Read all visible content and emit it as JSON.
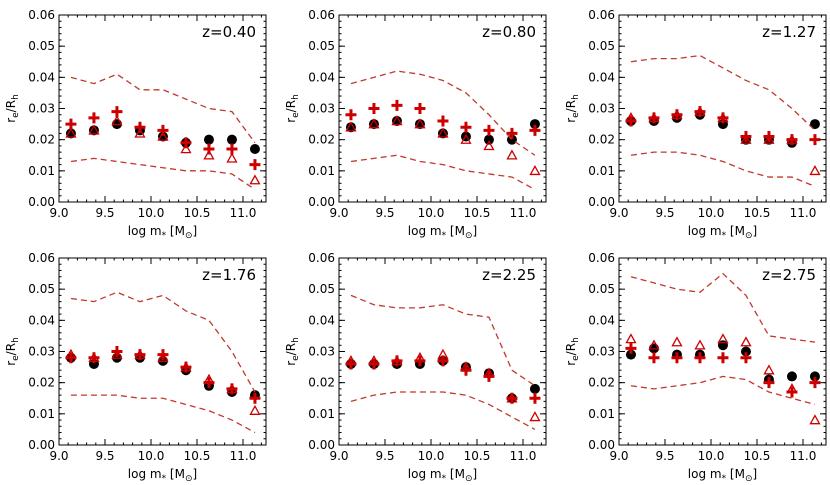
{
  "colors": {
    "accent": "#cc0000",
    "frame": "#000000",
    "band": "#c0392b"
  },
  "chart_data": [
    {
      "type": "scatter",
      "title": "z=0.40",
      "xlabel": "log m",
      "ylabel": "r",
      "xlim": [
        9.0,
        11.25
      ],
      "ylim": [
        0.0,
        0.06
      ],
      "grid": false,
      "x": [
        9.13,
        9.38,
        9.63,
        9.88,
        10.13,
        10.38,
        10.63,
        10.88,
        11.13
      ],
      "series": [
        {
          "marker": "circle",
          "values": [
            0.022,
            0.023,
            0.025,
            0.023,
            0.021,
            0.019,
            0.02,
            0.02,
            0.017
          ]
        },
        {
          "marker": "plus",
          "values": [
            0.025,
            0.027,
            0.029,
            0.024,
            0.023,
            0.019,
            0.017,
            0.017,
            0.012
          ]
        },
        {
          "marker": "triangle",
          "values": [
            0.022,
            0.023,
            0.026,
            0.022,
            0.021,
            0.017,
            0.015,
            0.014,
            0.007
          ]
        },
        {
          "marker": "dashed-upper",
          "values": [
            0.04,
            0.038,
            0.041,
            0.036,
            0.036,
            0.033,
            0.03,
            0.029,
            0.019
          ]
        },
        {
          "marker": "dashed-lower",
          "values": [
            0.013,
            0.014,
            0.013,
            0.012,
            0.011,
            0.01,
            0.01,
            0.009,
            0.004
          ]
        }
      ]
    },
    {
      "type": "scatter",
      "title": "z=0.80",
      "xlabel": "log m",
      "ylabel": "r",
      "xlim": [
        9.0,
        11.25
      ],
      "ylim": [
        0.0,
        0.06
      ],
      "grid": false,
      "x": [
        9.13,
        9.38,
        9.63,
        9.88,
        10.13,
        10.38,
        10.63,
        10.88,
        11.13
      ],
      "series": [
        {
          "marker": "circle",
          "values": [
            0.024,
            0.025,
            0.026,
            0.025,
            0.022,
            0.021,
            0.02,
            0.02,
            0.025
          ]
        },
        {
          "marker": "plus",
          "values": [
            0.028,
            0.03,
            0.031,
            0.03,
            0.026,
            0.024,
            0.023,
            0.022,
            0.023
          ]
        },
        {
          "marker": "triangle",
          "values": [
            0.024,
            0.025,
            0.026,
            0.025,
            0.022,
            0.02,
            0.018,
            0.015,
            0.01
          ]
        },
        {
          "marker": "dashed-upper",
          "values": [
            0.038,
            0.04,
            0.042,
            0.041,
            0.039,
            0.035,
            0.028,
            0.02,
            0.015
          ]
        },
        {
          "marker": "dashed-lower",
          "values": [
            0.013,
            0.014,
            0.015,
            0.013,
            0.012,
            0.01,
            0.009,
            0.008,
            0.004
          ]
        }
      ]
    },
    {
      "type": "scatter",
      "title": "z=1.27",
      "xlabel": "log m",
      "ylabel": "r",
      "xlim": [
        9.0,
        11.25
      ],
      "ylim": [
        0.0,
        0.06
      ],
      "grid": false,
      "x": [
        9.13,
        9.38,
        9.63,
        9.88,
        10.13,
        10.38,
        10.63,
        10.88,
        11.13
      ],
      "series": [
        {
          "marker": "circle",
          "values": [
            0.026,
            0.026,
            0.027,
            0.028,
            0.025,
            0.02,
            0.02,
            0.019,
            0.025
          ]
        },
        {
          "marker": "plus",
          "values": [
            0.026,
            0.027,
            0.028,
            0.029,
            0.027,
            0.021,
            0.021,
            0.02,
            0.02
          ]
        },
        {
          "marker": "triangle",
          "values": [
            0.027,
            0.027,
            0.028,
            0.029,
            0.027,
            0.02,
            0.02,
            0.02,
            0.01
          ]
        },
        {
          "marker": "dashed-upper",
          "values": [
            0.045,
            0.046,
            0.046,
            0.047,
            0.043,
            0.039,
            0.036,
            0.03,
            0.023
          ]
        },
        {
          "marker": "dashed-lower",
          "values": [
            0.015,
            0.016,
            0.016,
            0.015,
            0.013,
            0.01,
            0.008,
            0.008,
            0.005
          ]
        }
      ]
    },
    {
      "type": "scatter",
      "title": "z=1.76",
      "xlabel": "log m",
      "ylabel": "r",
      "xlim": [
        9.0,
        11.25
      ],
      "ylim": [
        0.0,
        0.06
      ],
      "grid": false,
      "x": [
        9.13,
        9.38,
        9.63,
        9.88,
        10.13,
        10.38,
        10.63,
        10.88,
        11.13
      ],
      "series": [
        {
          "marker": "circle",
          "values": [
            0.028,
            0.026,
            0.028,
            0.028,
            0.027,
            0.024,
            0.019,
            0.017,
            0.016
          ]
        },
        {
          "marker": "plus",
          "values": [
            0.028,
            0.028,
            0.03,
            0.029,
            0.029,
            0.025,
            0.02,
            0.018,
            0.015
          ]
        },
        {
          "marker": "triangle",
          "values": [
            0.029,
            0.028,
            0.029,
            0.029,
            0.028,
            0.025,
            0.021,
            0.018,
            0.011
          ]
        },
        {
          "marker": "dashed-upper",
          "values": [
            0.047,
            0.046,
            0.049,
            0.046,
            0.048,
            0.043,
            0.04,
            0.03,
            0.017
          ]
        },
        {
          "marker": "dashed-lower",
          "values": [
            0.016,
            0.016,
            0.016,
            0.015,
            0.015,
            0.013,
            0.011,
            0.008,
            0.004
          ]
        }
      ]
    },
    {
      "type": "scatter",
      "title": "z=2.25",
      "xlabel": "log m",
      "ylabel": "r",
      "xlim": [
        9.0,
        11.25
      ],
      "ylim": [
        0.0,
        0.06
      ],
      "grid": false,
      "x": [
        9.13,
        9.38,
        9.63,
        9.88,
        10.13,
        10.38,
        10.63,
        10.88,
        11.13
      ],
      "series": [
        {
          "marker": "circle",
          "values": [
            0.026,
            0.026,
            0.026,
            0.026,
            0.027,
            0.025,
            0.023,
            0.015,
            0.018
          ]
        },
        {
          "marker": "plus",
          "values": [
            0.026,
            0.026,
            0.027,
            0.027,
            0.027,
            0.024,
            0.022,
            0.015,
            0.015
          ]
        },
        {
          "marker": "triangle",
          "values": [
            0.027,
            0.027,
            0.027,
            0.028,
            0.029,
            0.025,
            0.023,
            0.015,
            0.009
          ]
        },
        {
          "marker": "dashed-upper",
          "values": [
            0.048,
            0.045,
            0.044,
            0.044,
            0.045,
            0.042,
            0.041,
            0.024,
            0.019
          ]
        },
        {
          "marker": "dashed-lower",
          "values": [
            0.014,
            0.016,
            0.017,
            0.017,
            0.017,
            0.016,
            0.013,
            0.009,
            0.005
          ]
        }
      ]
    },
    {
      "type": "scatter",
      "title": "z=2.75",
      "xlabel": "log m",
      "ylabel": "r",
      "xlim": [
        9.0,
        11.25
      ],
      "ylim": [
        0.0,
        0.06
      ],
      "grid": false,
      "x": [
        9.13,
        9.38,
        9.63,
        9.88,
        10.13,
        10.38,
        10.63,
        10.88,
        11.13
      ],
      "series": [
        {
          "marker": "circle",
          "values": [
            0.029,
            0.031,
            0.029,
            0.029,
            0.032,
            0.03,
            0.021,
            0.022,
            0.022
          ]
        },
        {
          "marker": "plus",
          "values": [
            0.031,
            0.028,
            0.028,
            0.028,
            0.028,
            0.028,
            0.02,
            0.017,
            0.02
          ]
        },
        {
          "marker": "triangle",
          "values": [
            0.034,
            0.032,
            0.033,
            0.032,
            0.034,
            0.033,
            0.024,
            0.018,
            0.008
          ]
        },
        {
          "marker": "dashed-upper",
          "values": [
            0.054,
            0.052,
            0.05,
            0.049,
            0.055,
            0.048,
            0.035,
            0.034,
            0.033
          ]
        },
        {
          "marker": "dashed-lower",
          "values": [
            0.019,
            0.018,
            0.019,
            0.02,
            0.022,
            0.021,
            0.017,
            0.015,
            0.013
          ]
        }
      ]
    }
  ],
  "axes": {
    "xticks": [
      "9.0",
      "9.5",
      "10.0",
      "10.5",
      "11.0"
    ],
    "yticks": [
      "0.00",
      "0.01",
      "0.02",
      "0.03",
      "0.04",
      "0.05",
      "0.06"
    ],
    "xlabel_prefix": "log m",
    "xlabel_sub": "*",
    "xlabel_unit_open": " [M",
    "xlabel_unit_sub": "⊙",
    "xlabel_unit_close": "]",
    "ylabel_main": "r",
    "ylabel_sub1": "e",
    "ylabel_slash": "/R",
    "ylabel_sub2": "h"
  }
}
